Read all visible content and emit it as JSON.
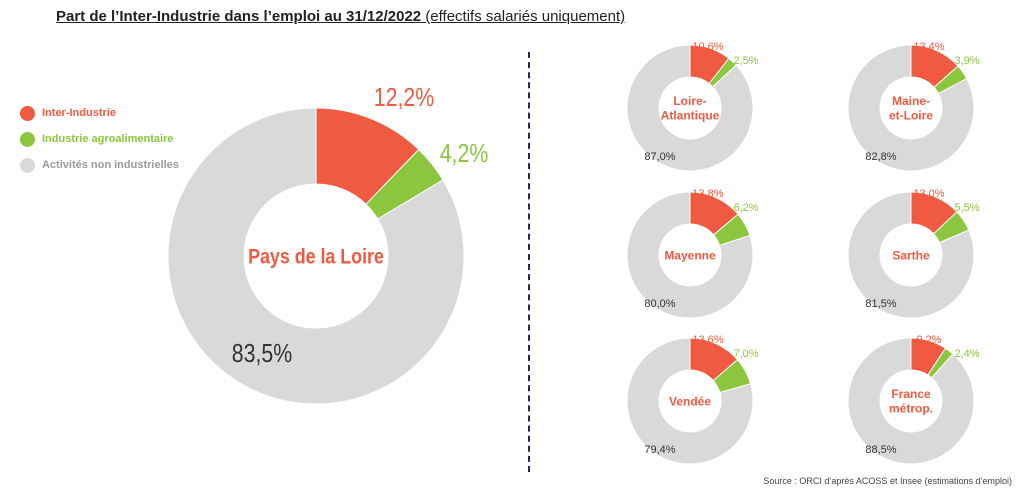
{
  "header": {
    "title_main": "Part de l’Inter-Industrie dans l’emploi au 31/12/2022",
    "title_note": "(effectifs salariés uniquement)"
  },
  "legend": [
    {
      "label": "Inter-Industrie",
      "color": "#EF5A40"
    },
    {
      "label": "Industrie agroalimentaire",
      "color": "#8CC63F"
    },
    {
      "label": "Activités non industrielles",
      "color": "#D9D9D9"
    }
  ],
  "colors": {
    "inter_industrie": "#EF5A40",
    "agro": "#8CC63F",
    "non_industrielles": "#D9D9D9",
    "non_label": "#333333"
  },
  "source": "Source : ORCI d’après ACOSS et Insee (estimations d’emploi)",
  "chart_data": [
    {
      "type": "pie",
      "center_label": [
        "Pays de la Loire"
      ],
      "categories": [
        "Inter-Industrie",
        "Industrie agroalimentaire",
        "Activités non industrielles"
      ],
      "values": [
        12.2,
        4.2,
        83.5
      ],
      "value_labels": [
        "12,2%",
        "4,2%",
        "83,5%"
      ]
    },
    {
      "type": "pie",
      "center_label": [
        "Loire-",
        "Atlantique"
      ],
      "categories": [
        "Inter-Industrie",
        "Industrie agroalimentaire",
        "Activités non industrielles"
      ],
      "values": [
        10.6,
        2.5,
        87.0
      ],
      "value_labels": [
        "10,6%",
        "2,5%",
        "87,0%"
      ]
    },
    {
      "type": "pie",
      "center_label": [
        "Maine-",
        "et-Loire"
      ],
      "categories": [
        "Inter-Industrie",
        "Industrie agroalimentaire",
        "Activités non industrielles"
      ],
      "values": [
        13.4,
        3.9,
        82.8
      ],
      "value_labels": [
        "13,4%",
        "3,9%",
        "82,8%"
      ]
    },
    {
      "type": "pie",
      "center_label": [
        "Mayenne"
      ],
      "categories": [
        "Inter-Industrie",
        "Industrie agroalimentaire",
        "Activités non industrielles"
      ],
      "values": [
        13.8,
        6.2,
        80.0
      ],
      "value_labels": [
        "13,8%",
        "6,2%",
        "80,0%"
      ]
    },
    {
      "type": "pie",
      "center_label": [
        "Sarthe"
      ],
      "categories": [
        "Inter-Industrie",
        "Industrie agroalimentaire",
        "Activités non industrielles"
      ],
      "values": [
        13.0,
        5.5,
        81.5
      ],
      "value_labels": [
        "13,0%",
        "5,5%",
        "81,5%"
      ]
    },
    {
      "type": "pie",
      "center_label": [
        "Vendée"
      ],
      "categories": [
        "Inter-Industrie",
        "Industrie agroalimentaire",
        "Activités non industrielles"
      ],
      "values": [
        13.6,
        7.0,
        79.4
      ],
      "value_labels": [
        "13,6%",
        "7,0%",
        "79,4%"
      ]
    },
    {
      "type": "pie",
      "center_label": [
        "France",
        "métrop."
      ],
      "categories": [
        "Inter-Industrie",
        "Industrie agroalimentaire",
        "Activités non industrielles"
      ],
      "values": [
        9.2,
        2.4,
        88.5
      ],
      "value_labels": [
        "9,2%",
        "2,4%",
        "88,5%"
      ]
    }
  ]
}
